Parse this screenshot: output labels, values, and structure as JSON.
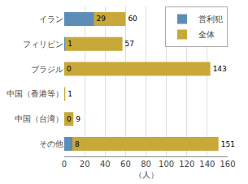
{
  "chart_data": {
    "type": "bar",
    "orientation": "horizontal",
    "categories": [
      "イラン",
      "フィリピン",
      "ブラジル",
      "中国（香港等）",
      "中国（台湾）",
      "その他"
    ],
    "series": [
      {
        "name": "営利犯",
        "color": "#5b8db8",
        "values": [
          29,
          1,
          0,
          0,
          0,
          8
        ],
        "value_labels": [
          "29",
          "1",
          "0",
          null,
          "0",
          "8"
        ]
      },
      {
        "name": "全体",
        "color": "#c8a838",
        "values": [
          60,
          57,
          143,
          1,
          9,
          151
        ]
      }
    ],
    "xlabel": "（人）",
    "xlim": [
      0,
      160
    ],
    "xticks": [
      0,
      20,
      40,
      60,
      80,
      100,
      120,
      140,
      160
    ],
    "grid": true,
    "legend": "upper right",
    "data_labels": true
  }
}
